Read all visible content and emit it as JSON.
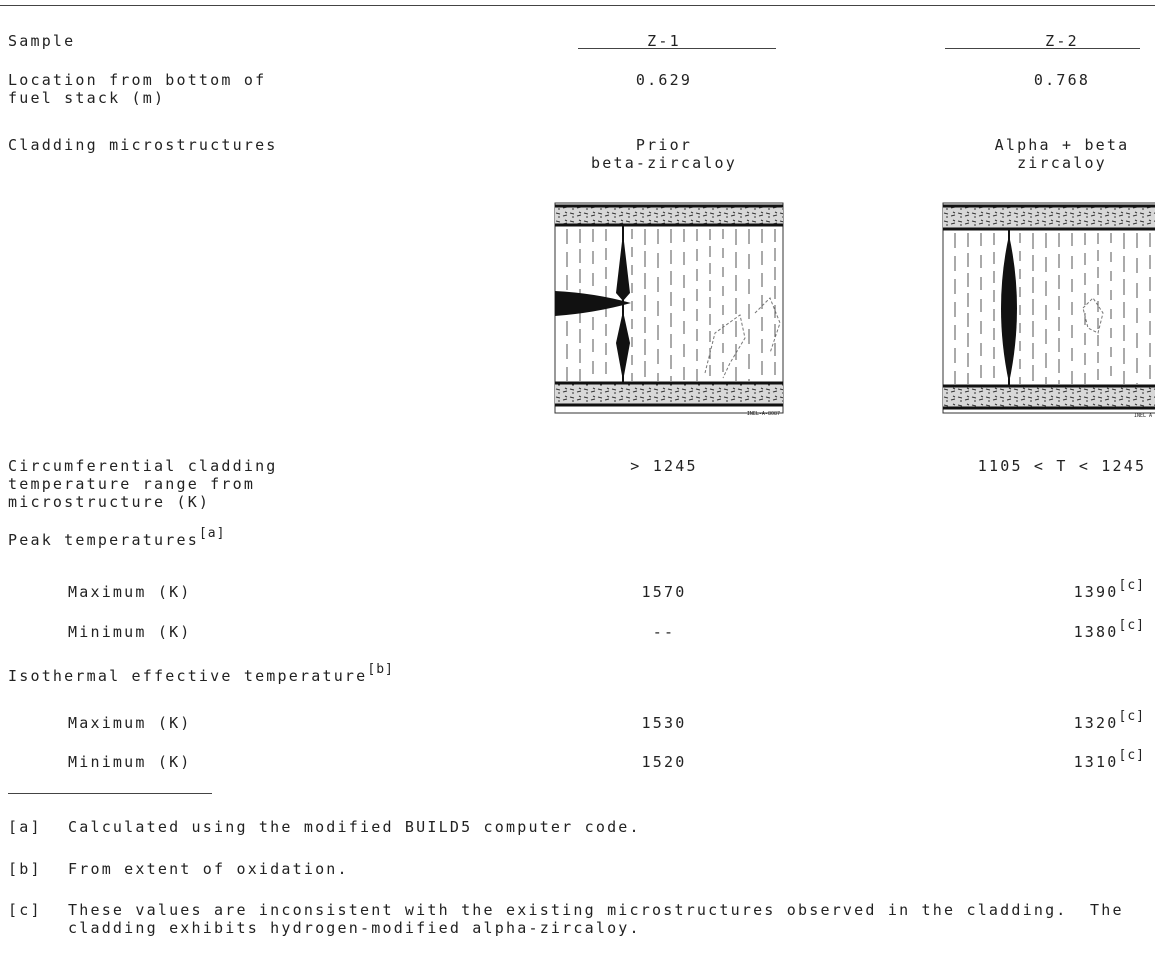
{
  "table": {
    "header": {
      "label": "Sample",
      "columns": [
        "Z-1",
        "Z-2"
      ]
    },
    "rows": [
      {
        "label": {
          "lines": [
            "Location from bottom of",
            "fuel stack (m)"
          ]
        },
        "cells": [
          {
            "lines": [
              "0.629"
            ]
          },
          {
            "lines": [
              "0.768"
            ]
          }
        ]
      },
      {
        "label": {
          "lines": [
            "Cladding microstructures"
          ]
        },
        "cells": [
          {
            "lines": [
              "Prior",
              "beta-zircaloy"
            ]
          },
          {
            "lines": [
              "Alpha + beta",
              "zircaloy"
            ]
          }
        ]
      },
      {
        "label": {
          "lines": [
            "Circumferential cladding",
            "temperature range from",
            "microstructure (K)"
          ]
        },
        "cells": [
          {
            "lines": [
              "> 1245"
            ]
          },
          {
            "lines": [
              "1105 < T < 1245"
            ]
          }
        ]
      },
      {
        "label": {
          "lines": [
            "Peak temperatures"
          ],
          "note": "[a]"
        },
        "cells": []
      },
      {
        "label": {
          "lines": [
            "Maximum (K)"
          ]
        },
        "cells": [
          {
            "lines": [
              "1570"
            ]
          },
          {
            "lines": [
              "1390"
            ],
            "note": "[c]"
          }
        ]
      },
      {
        "label": {
          "lines": [
            "Minimum (K)"
          ]
        },
        "cells": [
          {
            "lines": [
              "--"
            ]
          },
          {
            "lines": [
              "1380"
            ],
            "note": "[c]"
          }
        ]
      },
      {
        "label": {
          "lines": [
            "Isothermal effective temperature"
          ],
          "note": "[b]"
        },
        "cells": []
      },
      {
        "label": {
          "lines": [
            "Maximum (K)"
          ]
        },
        "cells": [
          {
            "lines": [
              "1530"
            ]
          },
          {
            "lines": [
              "1320"
            ],
            "note": "[c]"
          }
        ]
      },
      {
        "label": {
          "lines": [
            "Minimum (K)"
          ]
        },
        "cells": [
          {
            "lines": [
              "1520"
            ]
          },
          {
            "lines": [
              "1310"
            ],
            "note": "[c]"
          }
        ]
      }
    ]
  },
  "figures": [
    {
      "label": "INEL-A-8087"
    },
    {
      "label": "INEL A"
    }
  ],
  "footnotes": [
    {
      "mark": "[a]",
      "lines": [
        "Calculated using the modified BUILD5 computer code."
      ]
    },
    {
      "mark": "[b]",
      "lines": [
        "From extent of oxidation."
      ]
    },
    {
      "mark": "[c]",
      "lines": [
        "These values are inconsistent with the existing microstructures observed in the cladding.  The",
        "cladding exhibits hydrogen-modified alpha-zircaloy."
      ]
    }
  ]
}
